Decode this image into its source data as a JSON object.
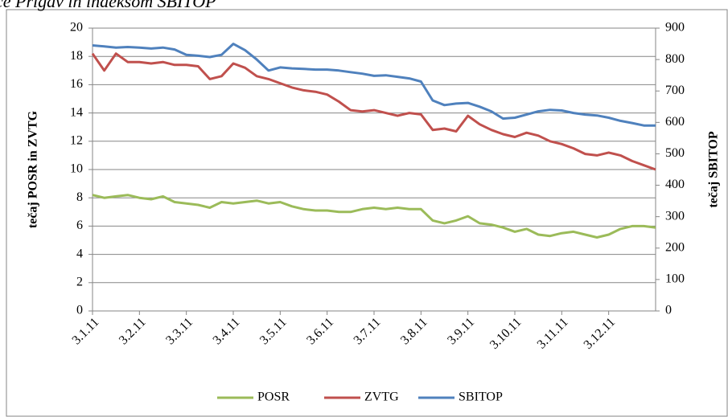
{
  "chart_data": {
    "type": "line",
    "title": "ce Prigav in indeksom SBITOP",
    "ylabel": "tečaj POSR in ZVTG",
    "y2label": "tečaj SBITOP",
    "categories": [
      "3.1.11",
      null,
      null,
      null,
      "3.2.11",
      null,
      null,
      null,
      "3.3.11",
      null,
      null,
      null,
      "3.4.11",
      null,
      null,
      null,
      "3.5.11",
      null,
      null,
      null,
      "3.6.11",
      null,
      null,
      null,
      "3.7.11",
      null,
      null,
      null,
      "3.8.11",
      null,
      null,
      null,
      "3.9.11",
      null,
      null,
      null,
      "3.10.11",
      null,
      null,
      null,
      "3.11.11",
      null,
      null,
      null,
      "3.12.11",
      null,
      null,
      null,
      null
    ],
    "series": [
      {
        "name": "POSR",
        "color": "#9bbb59",
        "values": [
          8.2,
          8.0,
          8.1,
          8.2,
          8.0,
          7.9,
          8.1,
          7.7,
          7.6,
          7.5,
          7.3,
          7.7,
          7.6,
          7.7,
          7.8,
          7.6,
          7.7,
          7.4,
          7.2,
          7.1,
          7.1,
          7.0,
          7.0,
          7.2,
          7.3,
          7.2,
          7.3,
          7.2,
          7.2,
          6.4,
          6.2,
          6.4,
          6.7,
          6.2,
          6.1,
          5.9,
          5.6,
          5.8,
          5.4,
          5.3,
          5.5,
          5.6,
          5.4,
          5.2,
          5.4,
          5.8,
          6.0,
          6.0,
          5.9
        ]
      },
      {
        "name": "ZVTG",
        "color": "#c0504d",
        "values": [
          18.2,
          17.0,
          18.2,
          17.6,
          17.6,
          17.5,
          17.6,
          17.4,
          17.4,
          17.3,
          16.4,
          16.6,
          17.5,
          17.2,
          16.6,
          16.4,
          16.1,
          15.8,
          15.6,
          15.5,
          15.3,
          14.8,
          14.2,
          14.1,
          14.2,
          14.0,
          13.8,
          14.0,
          13.9,
          12.8,
          12.9,
          12.7,
          13.8,
          13.2,
          12.8,
          12.5,
          12.3,
          12.6,
          12.4,
          12.0,
          11.8,
          11.5,
          11.1,
          11.0,
          11.2,
          11.0,
          10.6,
          10.3,
          10.0
        ]
      },
      {
        "name": "SBITOP",
        "color": "#4f81bd",
        "axis": "y2",
        "values": [
          845,
          842,
          838,
          840,
          838,
          835,
          838,
          832,
          815,
          812,
          808,
          815,
          850,
          830,
          800,
          765,
          775,
          772,
          770,
          768,
          768,
          765,
          760,
          755,
          748,
          750,
          745,
          740,
          730,
          670,
          655,
          660,
          662,
          650,
          635,
          612,
          615,
          625,
          635,
          640,
          638,
          630,
          625,
          622,
          615,
          605,
          598,
          590,
          590
        ]
      }
    ],
    "ylim": [
      0,
      20
    ],
    "yticks": [
      0,
      2,
      4,
      6,
      8,
      10,
      12,
      14,
      16,
      18,
      20
    ],
    "y2lim": [
      0,
      900
    ],
    "y2ticks": [
      0,
      100,
      200,
      300,
      400,
      500,
      600,
      700,
      800,
      900
    ],
    "grid": true,
    "legend": "bottom"
  }
}
